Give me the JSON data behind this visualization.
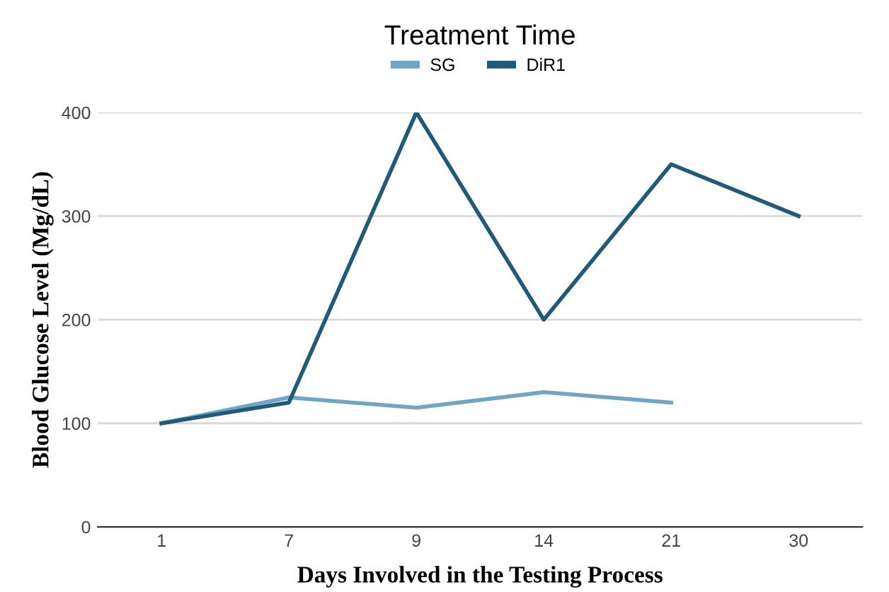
{
  "chart_data": {
    "type": "line",
    "title": "Treatment Time",
    "xlabel": "Days Involved in the Testing Process",
    "ylabel": "Blood Glucose Level (Mg/dL)",
    "categories": [
      "1",
      "7",
      "9",
      "14",
      "21",
      "30"
    ],
    "series": [
      {
        "name": "SG",
        "color": "#6ea6c4",
        "values": [
          100,
          125,
          115,
          130,
          120,
          null
        ]
      },
      {
        "name": "DiR1",
        "color": "#1f5b78",
        "values": [
          100,
          120,
          400,
          200,
          350,
          300
        ]
      }
    ],
    "ylim": [
      0,
      400
    ],
    "yticks": [
      0,
      100,
      200,
      300,
      400
    ],
    "grid": "y",
    "legend": "top",
    "marker": "none",
    "line_style": "solid"
  }
}
